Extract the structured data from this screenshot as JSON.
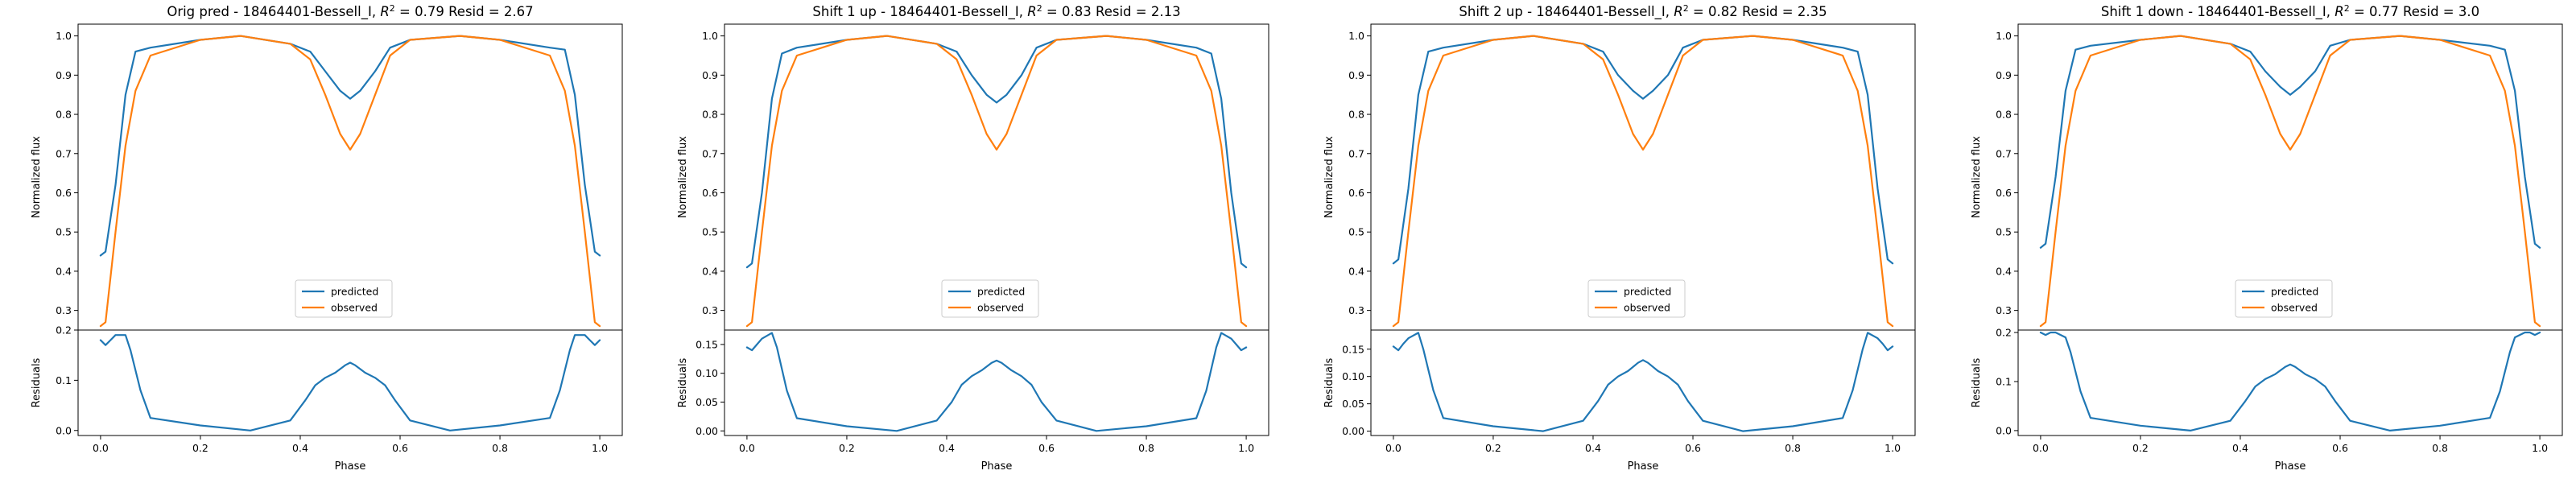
{
  "colors": {
    "predicted": "#1f77b4",
    "observed": "#ff7f0e",
    "axis": "#000000",
    "legend_frame": "#cccccc"
  },
  "legend_placement": "lower-center",
  "grid": false,
  "chart_data": [
    {
      "type": "line",
      "title": "Orig pred - 18464401-Bessell_I, $R^2 = 0.79$ Resid = 2.67",
      "title_parts": {
        "prefix": "Orig pred - 18464401-Bessell_I, ",
        "r2_label": "R",
        "r2_exp": "2",
        "r2_value": " = 0.79",
        "suffix": " Resid = 2.67"
      },
      "xlabel": "Phase",
      "flux": {
        "ylabel": "Normalized flux",
        "ylim": [
          0.25,
          1.03
        ],
        "yticks": [
          "0.3",
          "0.4",
          "0.5",
          "0.6",
          "0.7",
          "0.8",
          "0.9",
          "1.0"
        ],
        "series": [
          {
            "name": "predicted",
            "x": [
              0,
              0.01,
              0.03,
              0.05,
              0.07,
              0.1,
              0.2,
              0.28,
              0.38,
              0.42,
              0.45,
              0.48,
              0.5,
              0.52,
              0.55,
              0.58,
              0.62,
              0.72,
              0.8,
              0.9,
              0.93,
              0.95,
              0.97,
              0.99,
              1.0
            ],
            "y": [
              0.44,
              0.45,
              0.62,
              0.85,
              0.96,
              0.97,
              0.99,
              1.0,
              0.98,
              0.96,
              0.91,
              0.86,
              0.84,
              0.86,
              0.91,
              0.97,
              0.99,
              1.0,
              0.99,
              0.97,
              0.965,
              0.85,
              0.62,
              0.45,
              0.44
            ]
          },
          {
            "name": "observed",
            "x": [
              0,
              0.01,
              0.03,
              0.05,
              0.07,
              0.1,
              0.2,
              0.28,
              0.38,
              0.42,
              0.45,
              0.48,
              0.5,
              0.52,
              0.55,
              0.58,
              0.62,
              0.72,
              0.8,
              0.9,
              0.93,
              0.95,
              0.97,
              0.99,
              1.0
            ],
            "y": [
              0.26,
              0.27,
              0.5,
              0.72,
              0.86,
              0.95,
              0.99,
              1.0,
              0.98,
              0.94,
              0.85,
              0.75,
              0.71,
              0.75,
              0.85,
              0.95,
              0.99,
              1.0,
              0.99,
              0.95,
              0.86,
              0.72,
              0.5,
              0.27,
              0.26
            ]
          }
        ]
      },
      "residuals": {
        "ylabel": "Residuals",
        "ylim": [
          -0.01,
          0.2
        ],
        "yticks": [
          "0.0",
          "0.1",
          "0.2"
        ],
        "x": [
          0,
          0.01,
          0.02,
          0.03,
          0.05,
          0.06,
          0.08,
          0.1,
          0.2,
          0.3,
          0.38,
          0.41,
          0.43,
          0.45,
          0.47,
          0.49,
          0.5,
          0.51,
          0.53,
          0.55,
          0.57,
          0.59,
          0.62,
          0.7,
          0.8,
          0.9,
          0.92,
          0.94,
          0.95,
          0.97,
          0.98,
          0.99,
          1.0
        ],
        "y": [
          0.18,
          0.17,
          0.18,
          0.19,
          0.19,
          0.16,
          0.08,
          0.025,
          0.01,
          0.0,
          0.02,
          0.06,
          0.09,
          0.105,
          0.115,
          0.13,
          0.135,
          0.13,
          0.115,
          0.105,
          0.09,
          0.06,
          0.02,
          0.0,
          0.01,
          0.025,
          0.08,
          0.16,
          0.19,
          0.19,
          0.18,
          0.17,
          0.18
        ]
      }
    },
    {
      "type": "line",
      "title": "Shift 1 up - 18464401-Bessell_I, $R^2 = 0.83$ Resid = 2.13",
      "title_parts": {
        "prefix": "Shift 1 up - 18464401-Bessell_I, ",
        "r2_label": "R",
        "r2_exp": "2",
        "r2_value": " = 0.83",
        "suffix": " Resid = 2.13"
      },
      "xlabel": "Phase",
      "flux": {
        "ylabel": "Normalized flux",
        "ylim": [
          0.25,
          1.03
        ],
        "yticks": [
          "0.3",
          "0.4",
          "0.5",
          "0.6",
          "0.7",
          "0.8",
          "0.9",
          "1.0"
        ],
        "series": [
          {
            "name": "predicted",
            "x": [
              0,
              0.01,
              0.03,
              0.05,
              0.07,
              0.1,
              0.2,
              0.28,
              0.38,
              0.42,
              0.45,
              0.48,
              0.5,
              0.52,
              0.55,
              0.58,
              0.62,
              0.72,
              0.8,
              0.9,
              0.93,
              0.95,
              0.97,
              0.99,
              1.0
            ],
            "y": [
              0.41,
              0.42,
              0.6,
              0.84,
              0.955,
              0.97,
              0.99,
              1.0,
              0.98,
              0.96,
              0.9,
              0.85,
              0.83,
              0.85,
              0.9,
              0.97,
              0.99,
              1.0,
              0.99,
              0.97,
              0.955,
              0.84,
              0.6,
              0.42,
              0.41
            ]
          },
          {
            "name": "observed",
            "x": [
              0,
              0.01,
              0.03,
              0.05,
              0.07,
              0.1,
              0.2,
              0.28,
              0.38,
              0.42,
              0.45,
              0.48,
              0.5,
              0.52,
              0.55,
              0.58,
              0.62,
              0.72,
              0.8,
              0.9,
              0.93,
              0.95,
              0.97,
              0.99,
              1.0
            ],
            "y": [
              0.26,
              0.27,
              0.5,
              0.72,
              0.86,
              0.95,
              0.99,
              1.0,
              0.98,
              0.94,
              0.85,
              0.75,
              0.71,
              0.75,
              0.85,
              0.95,
              0.99,
              1.0,
              0.99,
              0.95,
              0.86,
              0.72,
              0.5,
              0.27,
              0.26
            ]
          }
        ]
      },
      "residuals": {
        "ylabel": "Residuals",
        "ylim": [
          -0.008,
          0.175
        ],
        "yticks": [
          "0.00",
          "0.05",
          "0.10",
          "0.15"
        ],
        "x": [
          0,
          0.01,
          0.02,
          0.03,
          0.05,
          0.06,
          0.08,
          0.1,
          0.2,
          0.3,
          0.38,
          0.41,
          0.43,
          0.45,
          0.47,
          0.49,
          0.5,
          0.51,
          0.53,
          0.55,
          0.57,
          0.59,
          0.62,
          0.7,
          0.8,
          0.9,
          0.92,
          0.94,
          0.95,
          0.97,
          0.98,
          0.99,
          1.0
        ],
        "y": [
          0.145,
          0.14,
          0.15,
          0.16,
          0.17,
          0.145,
          0.07,
          0.022,
          0.008,
          0.0,
          0.018,
          0.05,
          0.08,
          0.095,
          0.105,
          0.118,
          0.122,
          0.118,
          0.105,
          0.095,
          0.08,
          0.05,
          0.018,
          0.0,
          0.008,
          0.022,
          0.07,
          0.145,
          0.17,
          0.16,
          0.15,
          0.14,
          0.145
        ]
      }
    },
    {
      "type": "line",
      "title": "Shift 2 up - 18464401-Bessell_I, $R^2 = 0.82$ Resid = 2.35",
      "title_parts": {
        "prefix": "Shift 2 up - 18464401-Bessell_I, ",
        "r2_label": "R",
        "r2_exp": "2",
        "r2_value": " = 0.82",
        "suffix": " Resid = 2.35"
      },
      "xlabel": "Phase",
      "flux": {
        "ylabel": "Normalized flux",
        "ylim": [
          0.25,
          1.03
        ],
        "yticks": [
          "0.3",
          "0.4",
          "0.5",
          "0.6",
          "0.7",
          "0.8",
          "0.9",
          "1.0"
        ],
        "series": [
          {
            "name": "predicted",
            "x": [
              0,
              0.01,
              0.03,
              0.05,
              0.07,
              0.1,
              0.2,
              0.28,
              0.38,
              0.42,
              0.45,
              0.48,
              0.5,
              0.52,
              0.55,
              0.58,
              0.62,
              0.72,
              0.8,
              0.9,
              0.93,
              0.95,
              0.97,
              0.99,
              1.0
            ],
            "y": [
              0.42,
              0.43,
              0.61,
              0.85,
              0.96,
              0.97,
              0.99,
              1.0,
              0.98,
              0.96,
              0.9,
              0.86,
              0.84,
              0.86,
              0.9,
              0.97,
              0.99,
              1.0,
              0.99,
              0.97,
              0.96,
              0.85,
              0.61,
              0.43,
              0.42
            ]
          },
          {
            "name": "observed",
            "x": [
              0,
              0.01,
              0.03,
              0.05,
              0.07,
              0.1,
              0.2,
              0.28,
              0.38,
              0.42,
              0.45,
              0.48,
              0.5,
              0.52,
              0.55,
              0.58,
              0.62,
              0.72,
              0.8,
              0.9,
              0.93,
              0.95,
              0.97,
              0.99,
              1.0
            ],
            "y": [
              0.26,
              0.27,
              0.5,
              0.72,
              0.86,
              0.95,
              0.99,
              1.0,
              0.98,
              0.94,
              0.85,
              0.75,
              0.71,
              0.75,
              0.85,
              0.95,
              0.99,
              1.0,
              0.99,
              0.95,
              0.86,
              0.72,
              0.5,
              0.27,
              0.26
            ]
          }
        ]
      },
      "residuals": {
        "ylabel": "Residuals",
        "ylim": [
          -0.008,
          0.185
        ],
        "yticks": [
          "0.00",
          "0.05",
          "0.10",
          "0.15"
        ],
        "x": [
          0,
          0.01,
          0.02,
          0.03,
          0.05,
          0.06,
          0.08,
          0.1,
          0.2,
          0.3,
          0.38,
          0.41,
          0.43,
          0.45,
          0.47,
          0.49,
          0.5,
          0.51,
          0.53,
          0.55,
          0.57,
          0.59,
          0.62,
          0.7,
          0.8,
          0.9,
          0.92,
          0.94,
          0.95,
          0.97,
          0.98,
          0.99,
          1.0
        ],
        "y": [
          0.155,
          0.148,
          0.16,
          0.17,
          0.18,
          0.15,
          0.075,
          0.024,
          0.009,
          0.0,
          0.019,
          0.055,
          0.085,
          0.1,
          0.11,
          0.125,
          0.13,
          0.125,
          0.11,
          0.1,
          0.085,
          0.055,
          0.019,
          0.0,
          0.009,
          0.024,
          0.075,
          0.15,
          0.18,
          0.17,
          0.16,
          0.148,
          0.155
        ]
      }
    },
    {
      "type": "line",
      "title": "Shift 1 down - 18464401-Bessell_I, $R^2 = 0.77$ Resid = 3.0",
      "title_parts": {
        "prefix": "Shift 1 down - 18464401-Bessell_I, ",
        "r2_label": "R",
        "r2_exp": "2",
        "r2_value": " = 0.77",
        "suffix": " Resid = 3.0"
      },
      "xlabel": "Phase",
      "flux": {
        "ylabel": "Normalized flux",
        "ylim": [
          0.25,
          1.03
        ],
        "yticks": [
          "0.3",
          "0.4",
          "0.5",
          "0.6",
          "0.7",
          "0.8",
          "0.9",
          "1.0"
        ],
        "series": [
          {
            "name": "predicted",
            "x": [
              0,
              0.01,
              0.03,
              0.05,
              0.07,
              0.1,
              0.2,
              0.28,
              0.38,
              0.42,
              0.45,
              0.48,
              0.5,
              0.52,
              0.55,
              0.58,
              0.62,
              0.72,
              0.8,
              0.9,
              0.93,
              0.95,
              0.97,
              0.99,
              1.0
            ],
            "y": [
              0.46,
              0.47,
              0.64,
              0.86,
              0.965,
              0.975,
              0.99,
              1.0,
              0.98,
              0.96,
              0.91,
              0.87,
              0.85,
              0.87,
              0.91,
              0.975,
              0.99,
              1.0,
              0.99,
              0.975,
              0.965,
              0.86,
              0.64,
              0.47,
              0.46
            ]
          },
          {
            "name": "observed",
            "x": [
              0,
              0.01,
              0.03,
              0.05,
              0.07,
              0.1,
              0.2,
              0.28,
              0.38,
              0.42,
              0.45,
              0.48,
              0.5,
              0.52,
              0.55,
              0.58,
              0.62,
              0.72,
              0.8,
              0.9,
              0.93,
              0.95,
              0.97,
              0.99,
              1.0
            ],
            "y": [
              0.26,
              0.27,
              0.5,
              0.72,
              0.86,
              0.95,
              0.99,
              1.0,
              0.98,
              0.94,
              0.85,
              0.75,
              0.71,
              0.75,
              0.85,
              0.95,
              0.99,
              1.0,
              0.99,
              0.95,
              0.86,
              0.72,
              0.5,
              0.27,
              0.26
            ]
          }
        ]
      },
      "residuals": {
        "ylabel": "Residuals",
        "ylim": [
          -0.01,
          0.205
        ],
        "yticks": [
          "0.0",
          "0.1",
          "0.2"
        ],
        "x": [
          0,
          0.01,
          0.02,
          0.03,
          0.05,
          0.06,
          0.08,
          0.1,
          0.2,
          0.3,
          0.38,
          0.41,
          0.43,
          0.45,
          0.47,
          0.49,
          0.5,
          0.51,
          0.53,
          0.55,
          0.57,
          0.59,
          0.62,
          0.7,
          0.8,
          0.9,
          0.92,
          0.94,
          0.95,
          0.97,
          0.98,
          0.99,
          1.0
        ],
        "y": [
          0.2,
          0.195,
          0.2,
          0.2,
          0.19,
          0.16,
          0.08,
          0.026,
          0.01,
          0.0,
          0.02,
          0.06,
          0.09,
          0.105,
          0.115,
          0.13,
          0.135,
          0.13,
          0.115,
          0.105,
          0.09,
          0.06,
          0.02,
          0.0,
          0.01,
          0.026,
          0.08,
          0.16,
          0.19,
          0.2,
          0.2,
          0.195,
          0.2
        ]
      }
    }
  ]
}
